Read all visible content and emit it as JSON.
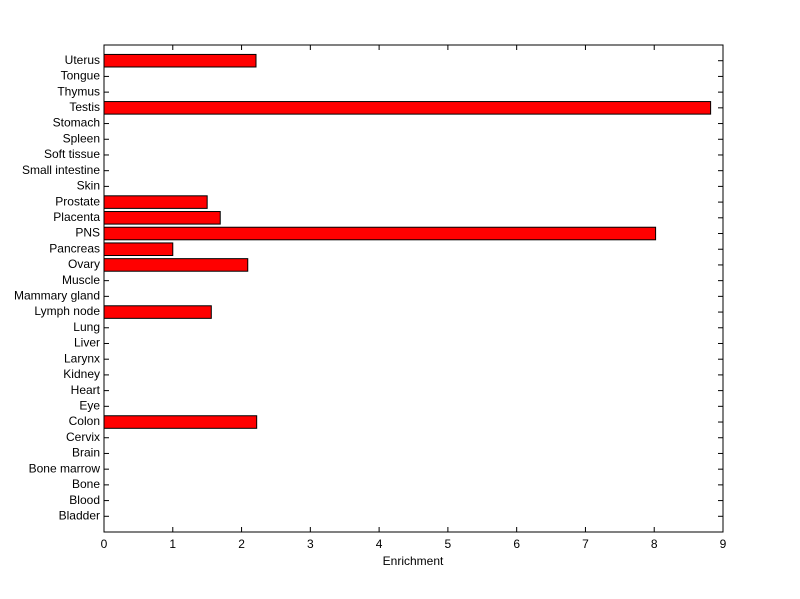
{
  "chart_data": {
    "type": "barh",
    "xlabel": "Enrichment",
    "categories": [
      "Uterus",
      "Tongue",
      "Thymus",
      "Testis",
      "Stomach",
      "Spleen",
      "Soft tissue",
      "Small intestine",
      "Skin",
      "Prostate",
      "Placenta",
      "PNS",
      "Pancreas",
      "Ovary",
      "Muscle",
      "Mammary gland",
      "Lymph node",
      "Lung",
      "Liver",
      "Larynx",
      "Kidney",
      "Heart",
      "Eye",
      "Colon",
      "Cervix",
      "Brain",
      "Bone marrow",
      "Bone",
      "Blood",
      "Bladder"
    ],
    "values": [
      2.21,
      0,
      0,
      8.82,
      0,
      0,
      0,
      0,
      0,
      1.5,
      1.69,
      8.02,
      1.0,
      2.09,
      0,
      0,
      1.56,
      0,
      0,
      0,
      0,
      0,
      0,
      2.22,
      0,
      0,
      0,
      0,
      0,
      0
    ],
    "color": "#ff0000",
    "xlim": [
      0,
      9
    ],
    "xticks": [
      0,
      1,
      2,
      3,
      4,
      5,
      6,
      7,
      8,
      9
    ],
    "grid": false
  }
}
